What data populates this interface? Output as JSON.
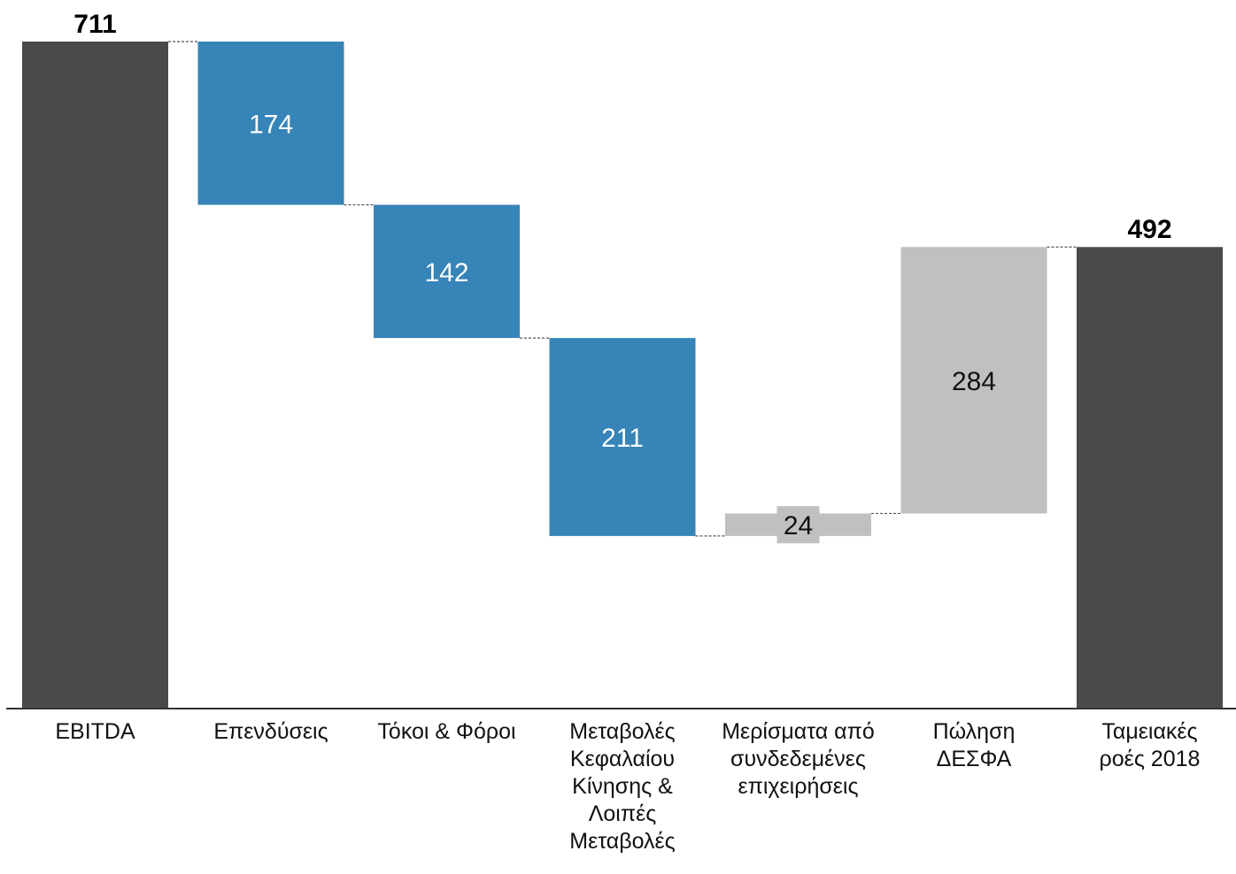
{
  "chart_data": {
    "type": "bar",
    "subtype": "waterfall",
    "title": "",
    "xlabel": "",
    "ylabel": "",
    "ylim": [
      0,
      711
    ],
    "grid": false,
    "legend": "none",
    "categories": [
      "EBITDA",
      "Επενδύσεις",
      "Τόκοι & Φόροι",
      "Μεταβολές\nΚεφαλαίου\nΚίνησης &\nΛοιπές\nΜεταβολές",
      "Μερίσματα από\nσυνδεδεμένες\nεπιχειρήσεις",
      "Πώληση\nΔΕΣΦΑ",
      "Ταμειακές\nροές 2018"
    ],
    "bars": [
      {
        "kind": "total",
        "value": 711,
        "label": "711",
        "color": "#4a4a4a"
      },
      {
        "kind": "decrease",
        "value": 174,
        "label": "174",
        "color": "#3684b8"
      },
      {
        "kind": "decrease",
        "value": 142,
        "label": "142",
        "color": "#3684b8"
      },
      {
        "kind": "decrease",
        "value": 211,
        "label": "211",
        "color": "#3684b8"
      },
      {
        "kind": "increase",
        "value": 24,
        "label": "24",
        "color": "#c0c0c0"
      },
      {
        "kind": "increase",
        "value": 284,
        "label": "284",
        "color": "#c0c0c0"
      },
      {
        "kind": "total",
        "value": 492,
        "label": "492",
        "color": "#4a4a4a"
      }
    ]
  }
}
